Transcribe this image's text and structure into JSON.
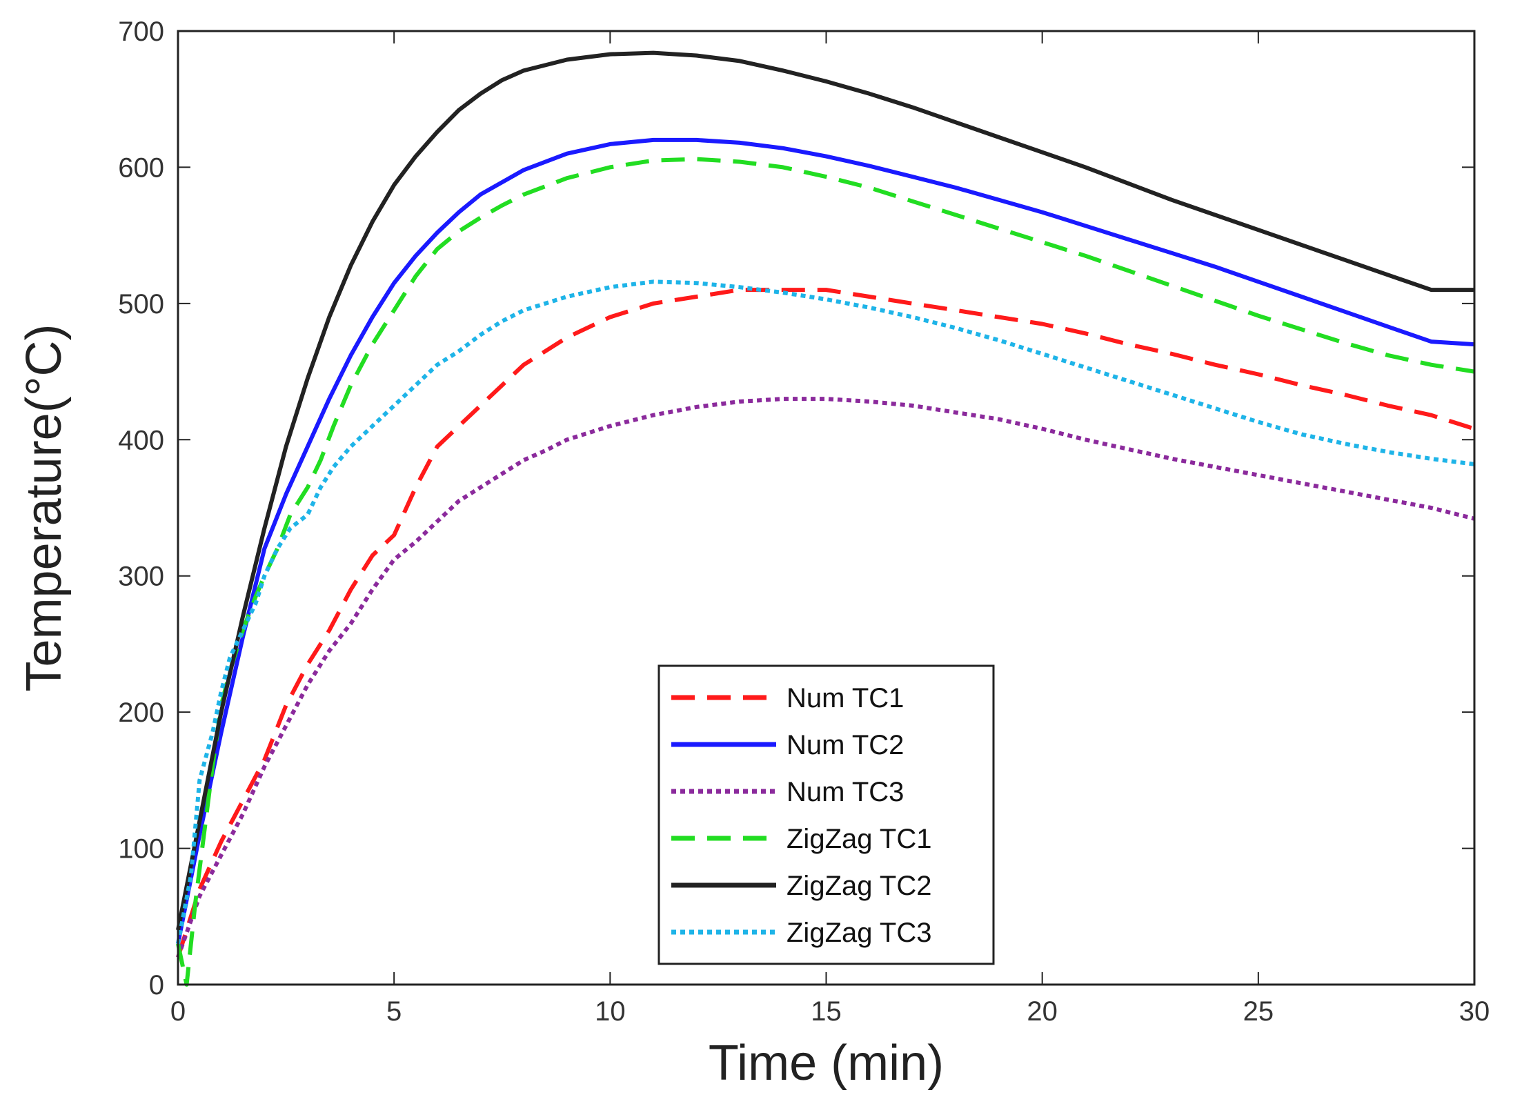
{
  "chart_data": {
    "type": "line",
    "title": "",
    "xlabel": "Time (min)",
    "ylabel": "Temperature(°C)",
    "xlim": [
      0,
      30
    ],
    "ylim": [
      0,
      700
    ],
    "xticks": [
      0,
      5,
      10,
      15,
      20,
      25,
      30
    ],
    "yticks": [
      0,
      100,
      200,
      300,
      400,
      500,
      600,
      700
    ],
    "grid": false,
    "legend_position": "bottom-center",
    "series": [
      {
        "name": "Num TC1",
        "color": "#ff1a1a",
        "style": "dashed",
        "x": [
          0,
          0.5,
          1,
          1.5,
          2,
          2.5,
          3,
          3.5,
          4,
          4.5,
          5,
          5.5,
          6,
          6.5,
          7,
          7.5,
          8,
          8.5,
          9,
          10,
          11,
          12,
          13,
          14,
          15,
          16,
          17,
          18,
          19,
          20,
          21,
          22,
          23,
          24,
          25,
          26,
          27,
          28,
          29,
          30
        ],
        "y": [
          20,
          70,
          105,
          135,
          165,
          205,
          235,
          260,
          290,
          315,
          330,
          365,
          395,
          410,
          425,
          440,
          455,
          465,
          475,
          490,
          500,
          505,
          510,
          510,
          510,
          505,
          500,
          495,
          490,
          485,
          478,
          470,
          463,
          455,
          448,
          440,
          433,
          425,
          418,
          408
        ]
      },
      {
        "name": "Num TC2",
        "color": "#1a1aff",
        "style": "solid",
        "x": [
          0,
          0.5,
          1,
          1.5,
          2,
          2.5,
          3,
          3.5,
          4,
          4.5,
          5,
          5.5,
          6,
          6.5,
          7,
          8,
          9,
          10,
          11,
          12,
          13,
          14,
          15,
          16,
          17,
          18,
          19,
          20,
          21,
          22,
          23,
          24,
          25,
          26,
          27,
          28,
          29,
          30
        ],
        "y": [
          30,
          110,
          185,
          255,
          320,
          360,
          395,
          430,
          462,
          490,
          515,
          535,
          552,
          567,
          580,
          598,
          610,
          617,
          620,
          620,
          618,
          614,
          608,
          601,
          593,
          585,
          576,
          567,
          557,
          547,
          537,
          527,
          516,
          505,
          494,
          483,
          472,
          470
        ]
      },
      {
        "name": "Num TC3",
        "color": "#8b2a9c",
        "style": "dotted",
        "x": [
          0,
          0.5,
          1,
          1.5,
          2,
          2.5,
          3,
          3.5,
          4,
          4.5,
          5,
          5.5,
          6,
          6.5,
          7,
          7.5,
          8,
          8.5,
          9,
          10,
          11,
          12,
          13,
          14,
          15,
          16,
          17,
          18,
          19,
          20,
          21,
          22,
          23,
          24,
          25,
          26,
          27,
          28,
          29,
          30
        ],
        "y": [
          20,
          65,
          95,
          125,
          160,
          190,
          220,
          245,
          265,
          290,
          312,
          325,
          340,
          355,
          365,
          375,
          385,
          392,
          400,
          410,
          418,
          424,
          428,
          430,
          430,
          428,
          425,
          420,
          415,
          408,
          400,
          393,
          386,
          380,
          374,
          368,
          362,
          356,
          350,
          342
        ]
      },
      {
        "name": "ZigZag TC1",
        "color": "#22dd22",
        "style": "dashed",
        "x": [
          0,
          0.2,
          0.4,
          0.6,
          0.8,
          1,
          1.2,
          1.5,
          1.8,
          2,
          2.3,
          2.6,
          3,
          3.3,
          3.6,
          4,
          4.5,
          5,
          5.5,
          6,
          6.5,
          7,
          7.5,
          8,
          9,
          10,
          11,
          12,
          13,
          14,
          15,
          16,
          17,
          18,
          19,
          20,
          21,
          22,
          23,
          24,
          25,
          26,
          27,
          28,
          29,
          30
        ],
        "y": [
          30,
          0,
          60,
          110,
          160,
          205,
          230,
          260,
          285,
          300,
          320,
          345,
          365,
          385,
          410,
          440,
          470,
          495,
          520,
          540,
          553,
          563,
          572,
          580,
          592,
          600,
          605,
          606,
          604,
          600,
          593,
          585,
          575,
          565,
          555,
          545,
          535,
          524,
          513,
          502,
          491,
          481,
          471,
          462,
          455,
          450
        ]
      },
      {
        "name": "ZigZag TC2",
        "color": "#222222",
        "style": "solid",
        "x": [
          0,
          0.5,
          1,
          1.5,
          2,
          2.5,
          3,
          3.5,
          4,
          4.5,
          5,
          5.5,
          6,
          6.5,
          7,
          7.5,
          8,
          9,
          10,
          11,
          12,
          13,
          14,
          15,
          16,
          17,
          18,
          19,
          20,
          21,
          22,
          23,
          24,
          25,
          26,
          27,
          28,
          29,
          30
        ],
        "y": [
          40,
          120,
          200,
          270,
          335,
          395,
          445,
          490,
          528,
          560,
          587,
          608,
          626,
          642,
          654,
          664,
          671,
          679,
          683,
          684,
          682,
          678,
          671,
          663,
          654,
          644,
          633,
          622,
          611,
          600,
          588,
          576,
          565,
          554,
          543,
          532,
          521,
          510,
          510
        ]
      },
      {
        "name": "ZigZag TC3",
        "color": "#1eb4e8",
        "style": "dotted",
        "x": [
          0,
          0.3,
          0.5,
          0.8,
          1,
          1.2,
          1.5,
          1.8,
          2,
          2.3,
          2.6,
          3,
          3.3,
          3.6,
          4,
          4.5,
          5,
          5.5,
          6,
          6.5,
          7,
          7.5,
          8,
          9,
          10,
          11,
          12,
          13,
          14,
          15,
          16,
          17,
          18,
          19,
          20,
          21,
          22,
          23,
          24,
          25,
          26,
          27,
          28,
          29,
          30
        ],
        "y": [
          30,
          80,
          150,
          185,
          215,
          240,
          260,
          280,
          300,
          320,
          335,
          345,
          365,
          380,
          395,
          410,
          425,
          440,
          455,
          465,
          477,
          487,
          495,
          505,
          512,
          516,
          515,
          512,
          508,
          503,
          497,
          490,
          482,
          473,
          463,
          453,
          443,
          433,
          423,
          413,
          404,
          397,
          391,
          386,
          382
        ]
      }
    ]
  }
}
